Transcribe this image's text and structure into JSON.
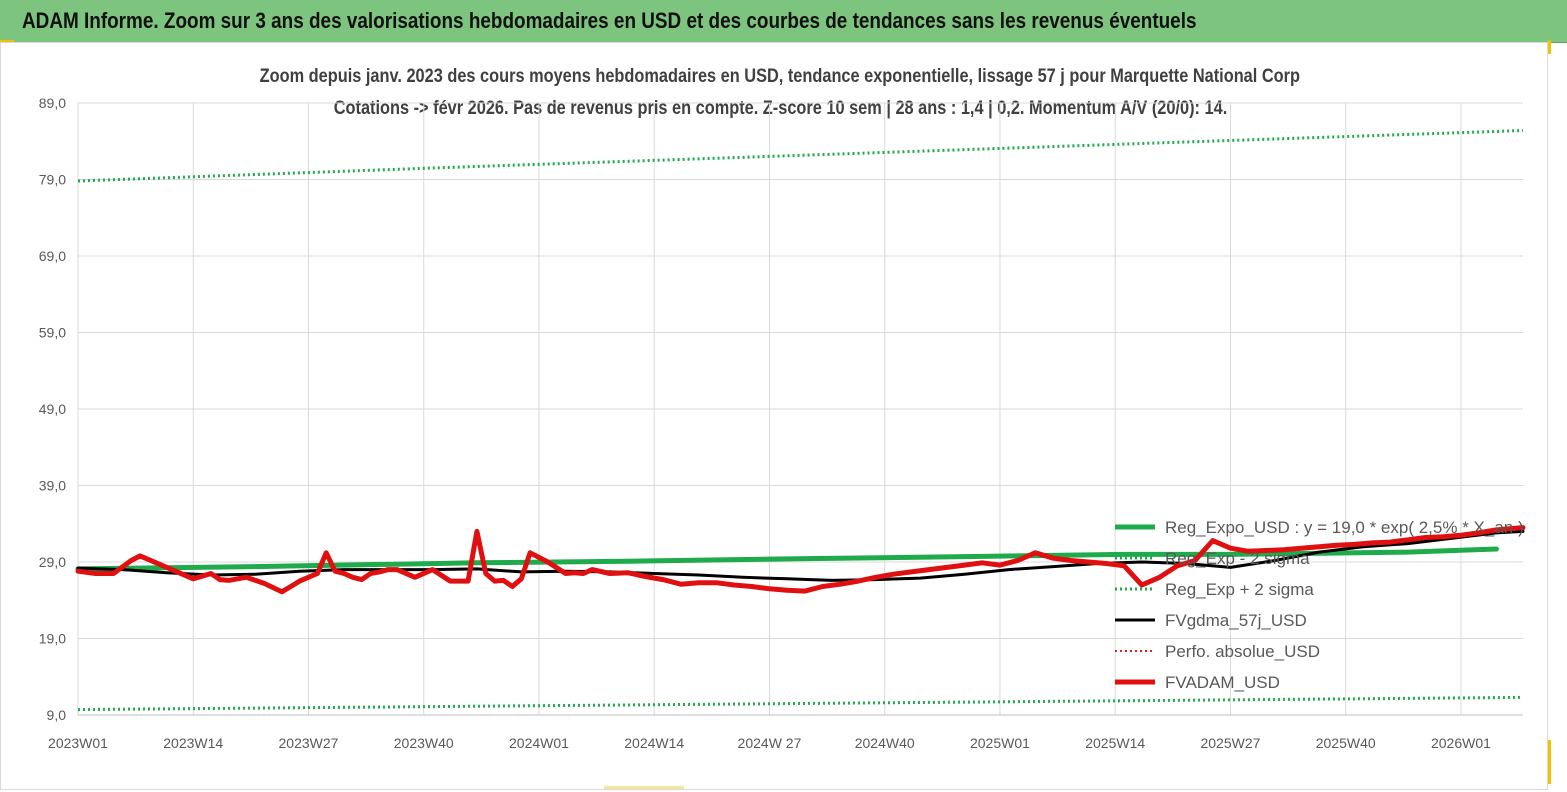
{
  "header": {
    "title": "ADAM Informe. Zoom sur 3 ans des valorisations hebdomadaires en USD et des courbes de tendances sans les revenus éventuels"
  },
  "chart_data": {
    "type": "line",
    "title": "Zoom depuis janv.  2023 des cours moyens hebdomadaires en USD, tendance exponentielle, lissage 57  j pour Marquette National Corp",
    "subtitle": "Cotations -> févr 2026.  Pas de revenus pris en compte. Z-score 10 sem  | 28 ans : 1,4 | 0,2. Momentum A/V (20/0): 14.",
    "xlabel": "",
    "ylabel": "",
    "ylim": [
      9,
      89
    ],
    "yticks": [
      "89,0",
      "79,0",
      "69,0",
      "59,0",
      "49,0",
      "39,0",
      "29,0",
      "19,0",
      "9,0"
    ],
    "x_tick_labels": [
      "2023W01",
      "2023W14",
      "2023W27",
      "2023W40",
      "2024W01",
      "2024W14",
      "2024W 27",
      "2024W40",
      "2025W01",
      "2025W14",
      "2025W27",
      "2025W40",
      "2026W01"
    ],
    "x_range_weeks": [
      0,
      163
    ],
    "grid": true,
    "legend_position": "bottom-right",
    "colors": {
      "reg_expo": "#1faa4b",
      "sigma": "#1faa4b",
      "fvgdma": "#000000",
      "perfo": "#e02020",
      "fvadam": "#e01010"
    },
    "series": [
      {
        "name": "Reg_Expo_USD : y = 19,0 * exp( 2,5% * X_an )",
        "style": "solid-thick",
        "x": [
          0,
          20,
          45,
          62,
          80,
          100,
          118,
          130,
          150,
          160
        ],
        "y": [
          28.1,
          28.4,
          28.9,
          29.1,
          29.4,
          29.7,
          30.0,
          30.0,
          30.3,
          30.7
        ]
      },
      {
        "name": "Reg_Exp - 2  sigma",
        "style": "dotted",
        "x": [
          0,
          163
        ],
        "y": [
          9.7,
          11.3
        ]
      },
      {
        "name": "Reg_Exp + 2 sigma",
        "style": "dotted",
        "x": [
          0,
          40,
          80,
          120,
          163
        ],
        "y": [
          78.8,
          80.5,
          82.1,
          83.7,
          85.4
        ]
      },
      {
        "name": "FVgdma_57j_USD",
        "style": "solid-medium",
        "x": [
          0,
          5,
          10,
          15,
          20,
          25,
          30,
          35,
          40,
          45,
          50,
          55,
          60,
          65,
          70,
          75,
          80,
          85,
          90,
          95,
          100,
          105,
          110,
          115,
          120,
          125,
          130,
          135,
          140,
          145,
          150,
          155,
          160,
          163
        ],
        "y": [
          28.2,
          28.0,
          27.6,
          27.3,
          27.4,
          27.8,
          28.0,
          28.0,
          28.0,
          28.1,
          27.7,
          27.8,
          27.7,
          27.5,
          27.3,
          27.0,
          26.8,
          26.6,
          26.7,
          26.9,
          27.4,
          28.0,
          28.4,
          28.8,
          29.0,
          28.8,
          28.3,
          29.2,
          30.3,
          31.0,
          31.4,
          32.1,
          32.8,
          33.0
        ]
      },
      {
        "name": "Perfo. absolue_USD",
        "style": "dotted-red",
        "x": [],
        "y": []
      },
      {
        "name": "FVADAM_USD",
        "style": "solid-thick",
        "x": [
          0,
          2,
          4,
          6,
          7,
          9,
          11,
          13,
          15,
          16,
          17,
          18,
          19,
          21,
          23,
          24,
          25,
          27,
          28,
          29,
          30,
          31,
          32,
          33,
          34,
          35,
          36,
          38,
          40,
          42,
          44,
          45,
          46,
          47,
          48,
          49,
          50,
          51,
          53,
          55,
          56,
          57,
          58,
          60,
          62,
          64,
          66,
          68,
          70,
          72,
          74,
          76,
          78,
          80,
          82,
          84,
          86,
          88,
          90,
          92,
          94,
          96,
          98,
          100,
          102,
          104,
          106,
          108,
          110,
          112,
          114,
          116,
          118,
          120,
          122,
          124,
          126,
          128,
          130,
          132,
          134,
          136,
          138,
          140,
          142,
          144,
          146,
          148,
          150,
          152,
          154,
          156,
          158,
          160,
          163
        ],
        "y": [
          27.8,
          27.5,
          27.5,
          29.2,
          29.8,
          28.8,
          27.8,
          26.8,
          27.5,
          26.7,
          26.6,
          26.8,
          27.0,
          26.2,
          25.1,
          25.8,
          26.5,
          27.5,
          30.2,
          27.8,
          27.5,
          27.0,
          26.7,
          27.5,
          27.7,
          28.0,
          28.0,
          27.0,
          28.0,
          26.5,
          26.5,
          33.0,
          27.5,
          26.5,
          26.6,
          25.8,
          26.8,
          30.2,
          29.0,
          27.5,
          27.6,
          27.5,
          28.0,
          27.5,
          27.6,
          27.1,
          26.7,
          26.1,
          26.3,
          26.3,
          26.0,
          25.8,
          25.5,
          25.3,
          25.2,
          25.8,
          26.1,
          26.5,
          27.0,
          27.4,
          27.7,
          28.0,
          28.3,
          28.6,
          28.9,
          28.6,
          29.2,
          30.2,
          29.5,
          29.2,
          29.0,
          28.8,
          28.5,
          26.0,
          27.0,
          28.5,
          29.2,
          31.8,
          30.8,
          30.4,
          30.5,
          30.6,
          30.8,
          31.0,
          31.2,
          31.3,
          31.5,
          31.6,
          31.9,
          32.2,
          32.3,
          32.5,
          32.8,
          33.2,
          33.5
        ]
      }
    ]
  }
}
